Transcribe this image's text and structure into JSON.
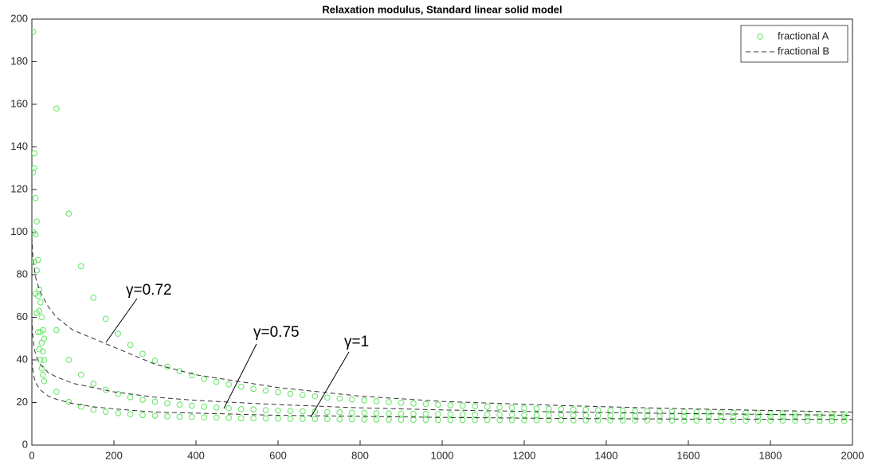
{
  "chart_data": {
    "type": "scatter-line",
    "title": "Relaxation modulus, Standard linear solid model",
    "xlim": [
      0,
      2000
    ],
    "xticks": [
      0,
      200,
      400,
      600,
      800,
      1000,
      1200,
      1400,
      1600,
      1800,
      2000
    ],
    "ylim": [
      0,
      200
    ],
    "yticks": [
      0,
      20,
      40,
      60,
      80,
      100,
      120,
      140,
      160,
      180,
      200
    ],
    "grid": false,
    "legend": "top-right",
    "x": [
      3,
      6,
      9,
      12,
      15,
      18,
      21,
      24,
      27,
      30,
      60,
      90,
      120,
      150,
      180,
      210,
      240,
      270,
      300,
      330,
      360,
      390,
      420,
      450,
      480,
      510,
      540,
      570,
      600,
      630,
      660,
      690,
      720,
      750,
      780,
      810,
      840,
      870,
      900,
      930,
      960,
      990,
      1020,
      1050,
      1080,
      1110,
      1140,
      1170,
      1200,
      1230,
      1260,
      1290,
      1320,
      1350,
      1380,
      1410,
      1440,
      1470,
      1500,
      1530,
      1560,
      1590,
      1620,
      1650,
      1680,
      1710,
      1740,
      1770,
      1800,
      1830,
      1860,
      1890,
      1920,
      1950,
      1980
    ],
    "series": [
      {
        "name": "fractional A",
        "type": "scatter",
        "color": "#5ee65e",
        "values": [
          194,
          137,
          116,
          105,
          87,
          73,
          67,
          60,
          54,
          50,
          158.0,
          108.7,
          84.0,
          69.2,
          59.3,
          52.3,
          47.0,
          42.9,
          39.6,
          36.9,
          34.7,
          32.8,
          31.1,
          29.7,
          28.5,
          27.4,
          26.4,
          25.6,
          24.8,
          24.1,
          23.5,
          22.9,
          22.3,
          21.8,
          21.4,
          21.0,
          20.6,
          20.2,
          19.9,
          19.5,
          19.3,
          19.0,
          18.7,
          18.5,
          18.2,
          18.0,
          17.8,
          17.6,
          17.4,
          17.2,
          17.0,
          16.9,
          16.7,
          16.6,
          16.4,
          16.3,
          16.2,
          16.0,
          15.9,
          15.8,
          15.7,
          15.6,
          15.5,
          15.4,
          15.3,
          15.2,
          15.1,
          15.0,
          14.9,
          14.9,
          14.8,
          14.7,
          14.6,
          14.6,
          14.5
        ]
      },
      {
        "type": "scatter",
        "color": "#5ee65e",
        "values": [
          128,
          130,
          99,
          82,
          70,
          63,
          53,
          48,
          44,
          40,
          54.0,
          40.0,
          33.0,
          28.8,
          26.0,
          24.0,
          22.5,
          21.3,
          20.4,
          19.6,
          19.0,
          18.5,
          18.0,
          17.6,
          17.3,
          16.9,
          16.7,
          16.4,
          16.2,
          16.0,
          15.8,
          15.7,
          15.5,
          15.4,
          15.2,
          15.1,
          15.0,
          14.9,
          14.8,
          14.7,
          14.6,
          14.5,
          14.5,
          14.4,
          14.3,
          14.3,
          14.2,
          14.2,
          14.1,
          14.0,
          14.0,
          14.0,
          13.9,
          13.9,
          13.8,
          13.8,
          13.8,
          13.7,
          13.7,
          13.6,
          13.6,
          13.6,
          13.6,
          13.5,
          13.5,
          13.5,
          13.4,
          13.4,
          13.4,
          13.4,
          13.4,
          13.3,
          13.3,
          13.3,
          13.3
        ]
      },
      {
        "type": "scatter",
        "color": "#5ee65e",
        "values": [
          100,
          86,
          71,
          62,
          53,
          45,
          40,
          36,
          33,
          30,
          25.0,
          20.3,
          18.0,
          16.6,
          15.7,
          15.0,
          14.5,
          14.1,
          13.8,
          13.5,
          13.3,
          13.2,
          13.0,
          12.9,
          12.8,
          12.6,
          12.6,
          12.5,
          12.4,
          12.3,
          12.3,
          12.2,
          12.2,
          12.1,
          12.1,
          12.0,
          12.0,
          12.0,
          11.9,
          11.9,
          11.9,
          11.8,
          11.8,
          11.8,
          11.8,
          11.8,
          11.7,
          11.7,
          11.7,
          11.7,
          11.7,
          11.7,
          11.6,
          11.6,
          11.6,
          11.6,
          11.6,
          11.6,
          11.6,
          11.5,
          11.5,
          11.5,
          11.5,
          11.5,
          11.5,
          11.5,
          11.5,
          11.5,
          11.5,
          11.5,
          11.5,
          11.4,
          11.4,
          11.4,
          11.4
        ]
      },
      {
        "name": "fractional B",
        "type": "line",
        "color": "#333333",
        "dashed": true,
        "x": [
          0,
          2,
          5,
          10,
          20,
          40,
          60,
          100,
          150,
          200,
          300,
          400,
          600,
          800,
          1000,
          1300,
          1600,
          2000
        ],
        "values": [
          98,
          90,
          84,
          78,
          72,
          65,
          60,
          54,
          50,
          46,
          38,
          33,
          27,
          23,
          20.5,
          18.5,
          17,
          15.5
        ]
      },
      {
        "type": "line",
        "color": "#333333",
        "dashed": true,
        "x": [
          0,
          2,
          5,
          10,
          20,
          40,
          60,
          100,
          150,
          200,
          300,
          400,
          600,
          800,
          1000,
          1300,
          1600,
          2000
        ],
        "values": [
          60,
          52,
          46,
          42,
          38,
          34,
          32,
          29,
          27,
          25,
          22.5,
          21,
          19,
          17.5,
          16.5,
          15.5,
          14.8,
          14
        ]
      },
      {
        "type": "line",
        "color": "#333333",
        "dashed": true,
        "x": [
          0,
          2,
          5,
          10,
          20,
          40,
          60,
          100,
          150,
          200,
          300,
          400,
          600,
          800,
          1000,
          1300,
          1600,
          2000
        ],
        "values": [
          40,
          36,
          32,
          29,
          26,
          23,
          21.5,
          19.5,
          18,
          17,
          15.5,
          15,
          14,
          13.5,
          13,
          12.5,
          12.2,
          12
        ]
      }
    ],
    "annotations": [
      {
        "text": "γ=0.72"
      },
      {
        "text": "γ=0.75"
      },
      {
        "text": "γ=1"
      }
    ]
  }
}
